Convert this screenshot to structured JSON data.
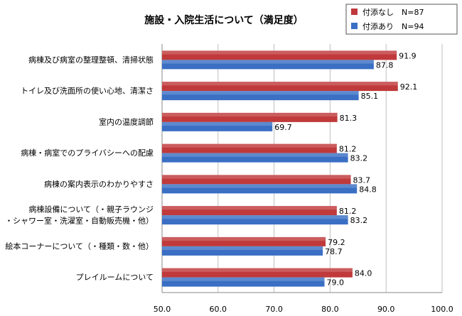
{
  "chart_data": {
    "type": "bar",
    "orientation": "horizontal",
    "title": "施設・入院生活について（満足度）",
    "categories": [
      [
        "病棟及び病室の整理整頓、清掃状態"
      ],
      [
        "トイレ及び洗面所の使い心地、清潔さ"
      ],
      [
        "室内の温度調節"
      ],
      [
        "病棟・病室でのプライバシーへの配慮"
      ],
      [
        "病棟の案内表示のわかりやすさ"
      ],
      [
        "病棟設備について（・親子ラウンジ",
        "・シャワー室・洗濯室・自動販売機・他）"
      ],
      [
        "絵本コーナーについて（・種類・数・他）"
      ],
      [
        "プレイルームについて"
      ]
    ],
    "series": [
      {
        "name": "付添なし　N=87",
        "color": "#c0393b",
        "values": [
          91.9,
          92.1,
          81.3,
          81.2,
          83.7,
          81.2,
          79.2,
          84.0
        ]
      },
      {
        "name": "付添あり　N=94",
        "color": "#3a6fc4",
        "values": [
          87.8,
          85.1,
          69.7,
          83.2,
          84.8,
          83.2,
          78.7,
          79.0
        ]
      }
    ],
    "xlim": [
      50,
      100
    ],
    "xticks": [
      "50.0",
      "60.0",
      "70.0",
      "80.0",
      "90.0",
      "100.0"
    ],
    "grid": true,
    "legend_position": "top-right"
  }
}
